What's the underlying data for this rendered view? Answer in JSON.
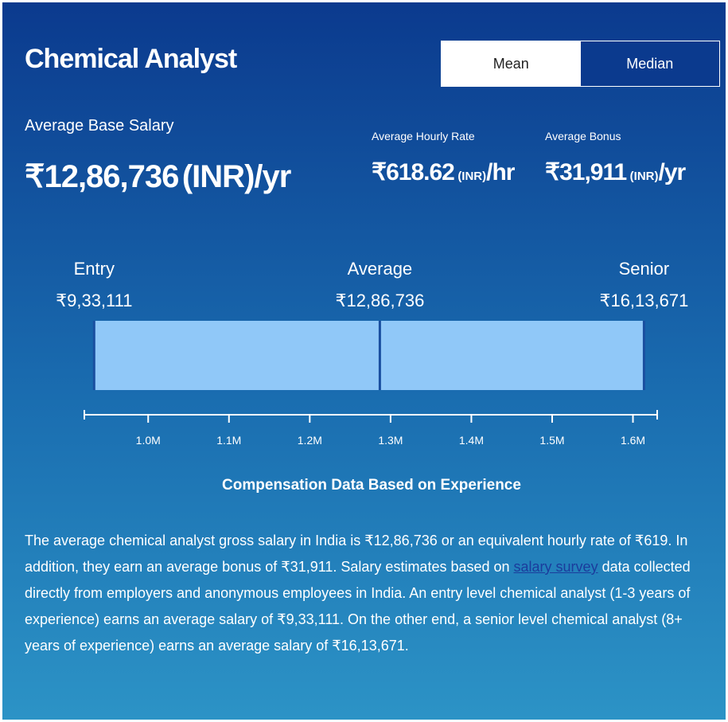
{
  "header": {
    "title": "Chemical Analyst",
    "toggle": [
      "Mean",
      "Median"
    ]
  },
  "stats": [
    {
      "label": "Average Base Salary",
      "value": "₹12,86,736",
      "unit": "(INR)",
      "per": "/yr"
    },
    {
      "label": "Average Hourly Rate",
      "value": "₹618.62",
      "unit": "(INR)",
      "per": "/hr"
    },
    {
      "label": "Average Bonus",
      "value": "₹31,911",
      "unit": "(INR)",
      "per": "/yr"
    }
  ],
  "chart_data": {
    "type": "range",
    "title": "Compensation Data Based on Experience",
    "categories": [
      "Entry",
      "Average",
      "Senior"
    ],
    "values": [
      933111,
      1286736,
      1613671
    ],
    "value_labels": [
      "₹9,33,111",
      "₹12,86,736",
      "₹16,13,671"
    ],
    "color": "#90c8f8",
    "xlim": [
      921000,
      1630000
    ],
    "xticks": [
      {
        "value": 1000000,
        "label": "1.0M"
      },
      {
        "value": 1100000,
        "label": "1.1M"
      },
      {
        "value": 1200000,
        "label": "1.2M"
      },
      {
        "value": 1300000,
        "label": "1.3M"
      },
      {
        "value": 1400000,
        "label": "1.4M"
      },
      {
        "value": 1500000,
        "label": "1.5M"
      },
      {
        "value": 1600000,
        "label": "1.6M"
      }
    ]
  },
  "description": {
    "before": "The average chemical analyst gross salary in India is ₹12,86,736 or an equivalent hourly rate of ₹619. In addition, they earn an average bonus of ₹31,911. Salary estimates based on ",
    "link": "salary survey",
    "after": " data collected directly from employers and anonymous employees in India. An entry level chemical analyst (1-3 years of experience) earns an average salary of ₹9,33,111. On the other end, a senior level chemical analyst (8+ years of experience) earns an average salary of ₹16,13,671."
  }
}
